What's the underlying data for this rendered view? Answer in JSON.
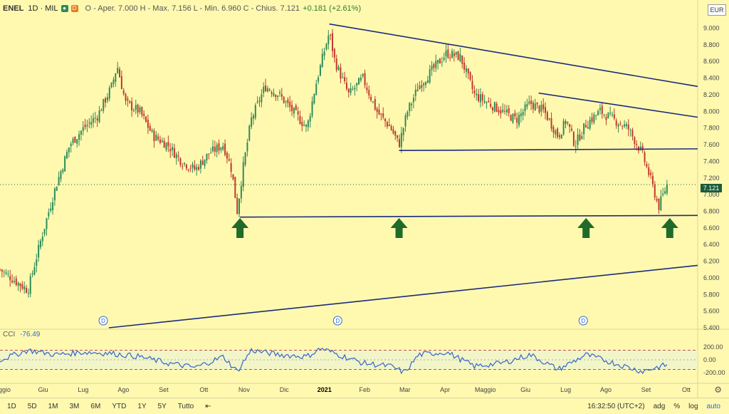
{
  "header": {
    "symbol": "ENEL",
    "interval": "1D",
    "exchange": "MIL",
    "ohlc_text": "O - Aper. 7.000  H - Max. 7.156  L - Min. 6.960  C - Chius. 7.121",
    "change_text": "+0.181 (+2.61%)"
  },
  "currency": "EUR",
  "last_price": "7.121",
  "indicator": {
    "name": "CCI",
    "value": "-76.49",
    "levels": [
      "200.00",
      "0.00",
      "-200.00"
    ]
  },
  "colors": {
    "background": "#fff9b0",
    "trendline": "#1c2a7c",
    "arrow": "#1f6b2a",
    "cci": "#3366cc",
    "up": "#2e8b57",
    "down": "#c0392b"
  },
  "bottom_bar": {
    "ranges": [
      "1D",
      "5D",
      "1M",
      "3M",
      "6M",
      "YTD",
      "1Y",
      "5Y",
      "Tutto"
    ],
    "time": "16:32:50 (UTC+2)",
    "options": [
      "adg",
      "%",
      "log",
      "auto"
    ]
  },
  "chart_data": {
    "type": "candlestick",
    "title": "ENEL 1D MIL",
    "y_ticks": [
      "9.000",
      "8.800",
      "8.600",
      "8.400",
      "8.200",
      "8.000",
      "7.800",
      "7.600",
      "7.400",
      "7.200",
      "7.000",
      "6.800",
      "6.600",
      "6.400",
      "6.200",
      "6.000",
      "5.800",
      "5.600",
      "5.400"
    ],
    "ylim": [
      5.4,
      9.15
    ],
    "x_tick_labels": [
      "aggio",
      "Giu",
      "Lug",
      "Ago",
      "Set",
      "Ott",
      "Nov",
      "Dic",
      "2021",
      "Feb",
      "Mar",
      "Apr",
      "Maggio",
      "Giu",
      "Lug",
      "Ago",
      "Set",
      "Ott"
    ],
    "close_path": [
      [
        0,
        6.1
      ],
      [
        1,
        5.85
      ],
      [
        1.5,
        6.5
      ],
      [
        2.0,
        7.1
      ],
      [
        2.5,
        7.6
      ],
      [
        3.0,
        7.8
      ],
      [
        3.5,
        7.95
      ],
      [
        4.0,
        8.3
      ],
      [
        4.2,
        8.55
      ],
      [
        4.5,
        8.1
      ],
      [
        5.0,
        8.0
      ],
      [
        5.5,
        7.7
      ],
      [
        6.0,
        7.6
      ],
      [
        6.5,
        7.4
      ],
      [
        7.0,
        7.3
      ],
      [
        7.5,
        7.5
      ],
      [
        8.0,
        7.6
      ],
      [
        8.3,
        7.3
      ],
      [
        8.5,
        6.8
      ],
      [
        8.7,
        7.3
      ],
      [
        9.0,
        7.9
      ],
      [
        9.5,
        8.3
      ],
      [
        10.0,
        8.2
      ],
      [
        10.5,
        8.0
      ],
      [
        11.0,
        7.8
      ],
      [
        11.3,
        8.3
      ],
      [
        11.6,
        8.7
      ],
      [
        11.8,
        8.95
      ],
      [
        12.0,
        8.6
      ],
      [
        12.5,
        8.2
      ],
      [
        13.0,
        8.4
      ],
      [
        13.5,
        8.0
      ],
      [
        14.0,
        7.8
      ],
      [
        14.3,
        7.6
      ],
      [
        14.6,
        8.0
      ],
      [
        15.0,
        8.3
      ],
      [
        15.5,
        8.5
      ],
      [
        16.0,
        8.7
      ],
      [
        16.5,
        8.65
      ],
      [
        17.0,
        8.2
      ],
      [
        17.5,
        8.1
      ],
      [
        18.0,
        8.0
      ],
      [
        18.5,
        7.9
      ],
      [
        19.0,
        8.1
      ],
      [
        19.5,
        8.0
      ],
      [
        20.0,
        7.7
      ],
      [
        20.3,
        7.9
      ],
      [
        20.6,
        7.6
      ],
      [
        21.0,
        7.85
      ],
      [
        21.5,
        8.0
      ],
      [
        22.0,
        7.9
      ],
      [
        22.5,
        7.8
      ],
      [
        23.0,
        7.5
      ],
      [
        23.3,
        7.2
      ],
      [
        23.6,
        6.85
      ],
      [
        23.9,
        7.12
      ]
    ],
    "cci_path": [
      [
        0,
        0
      ],
      [
        1,
        150
      ],
      [
        2,
        80
      ],
      [
        3,
        120
      ],
      [
        4,
        100
      ],
      [
        5,
        50
      ],
      [
        6,
        -50
      ],
      [
        7,
        -120
      ],
      [
        8,
        50
      ],
      [
        8.5,
        -180
      ],
      [
        9,
        150
      ],
      [
        10,
        80
      ],
      [
        11,
        50
      ],
      [
        11.5,
        180
      ],
      [
        12,
        100
      ],
      [
        13,
        -50
      ],
      [
        14,
        -100
      ],
      [
        14.5,
        -200
      ],
      [
        15,
        80
      ],
      [
        16,
        120
      ],
      [
        17,
        -100
      ],
      [
        18,
        -50
      ],
      [
        19,
        80
      ],
      [
        20,
        -150
      ],
      [
        21,
        80
      ],
      [
        22,
        -50
      ],
      [
        23,
        -180
      ],
      [
        23.9,
        -76
      ]
    ],
    "trendlines": [
      {
        "from": [
          11.8,
          9.05
        ],
        "to": [
          25,
          8.3
        ]
      },
      {
        "from": [
          19.3,
          8.22
        ],
        "to": [
          25,
          7.93
        ]
      },
      {
        "from": [
          14.3,
          7.53
        ],
        "to": [
          25,
          7.55
        ]
      },
      {
        "from": [
          8.6,
          6.73
        ],
        "to": [
          25,
          6.75
        ]
      },
      {
        "from": [
          3.9,
          5.4
        ],
        "to": [
          25,
          6.15
        ]
      }
    ],
    "arrows": [
      8.6,
      14.3,
      21.0,
      24.0
    ],
    "dividend_markers": [
      3.7,
      12.1,
      20.9
    ]
  }
}
